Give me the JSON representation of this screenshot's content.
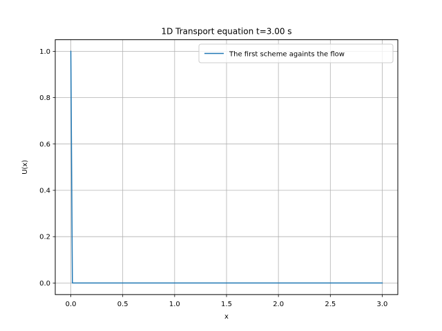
{
  "chart_data": {
    "type": "line",
    "title": "1D Transport equation t=3.00 s",
    "xlabel": "x",
    "ylabel": "U(x)",
    "xlim": [
      -0.15,
      3.15
    ],
    "ylim": [
      -0.05,
      1.05
    ],
    "xticks": [
      0.0,
      0.5,
      1.0,
      1.5,
      2.0,
      2.5,
      3.0
    ],
    "xtick_labels": [
      "0.0",
      "0.5",
      "1.0",
      "1.5",
      "2.0",
      "2.5",
      "3.0"
    ],
    "yticks": [
      0.0,
      0.2,
      0.4,
      0.6,
      0.8,
      1.0
    ],
    "ytick_labels": [
      "0.0",
      "0.2",
      "0.4",
      "0.6",
      "0.8",
      "1.0"
    ],
    "grid": true,
    "legend_position": "top-right",
    "series": [
      {
        "name": "The first scheme againts the flow",
        "color": "#1f77b4",
        "x": [
          0.0,
          0.015,
          3.0
        ],
        "y": [
          1.0,
          0.0,
          0.0
        ]
      }
    ]
  }
}
